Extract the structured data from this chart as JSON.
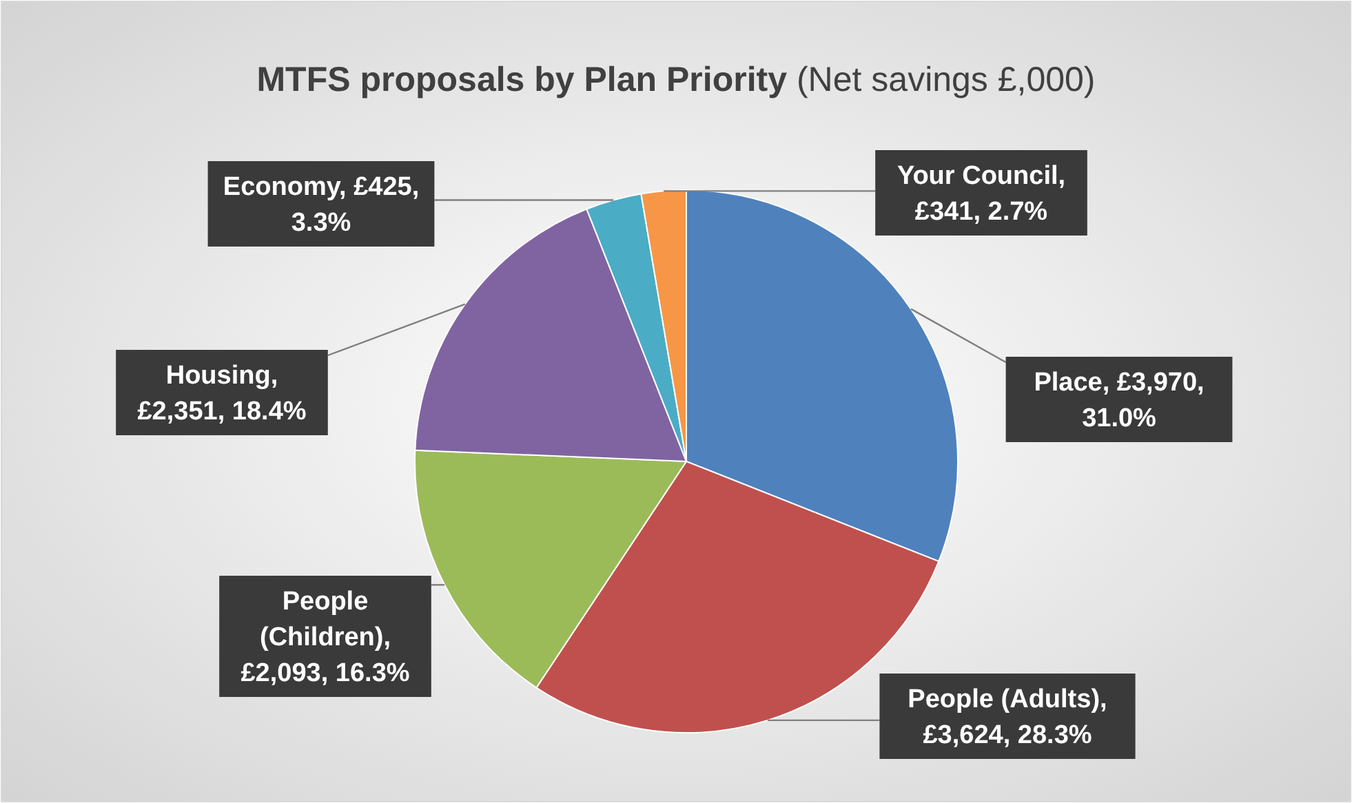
{
  "chart_data": {
    "type": "pie",
    "title": "MTFS proposals by Plan Priority",
    "subtitle": "(Net savings £,000)",
    "categories": [
      "Place",
      "People (Adults)",
      "People (Children)",
      "Housing",
      "Economy",
      "Your Council"
    ],
    "values": [
      3970,
      3624,
      2093,
      2351,
      425,
      341
    ],
    "colors": [
      "#4f81bd",
      "#c0504d",
      "#9bbb59",
      "#8064a2",
      "#4bacc6",
      "#f79646"
    ],
    "value_labels": [
      ", £3,970, 31.0%",
      ", £3,624, 28.3%",
      ", £2,093, 16.3%",
      ", £2,351, 18.4%",
      ", £425, 3.3%",
      ", £341, 2.7%"
    ],
    "legend": false
  }
}
